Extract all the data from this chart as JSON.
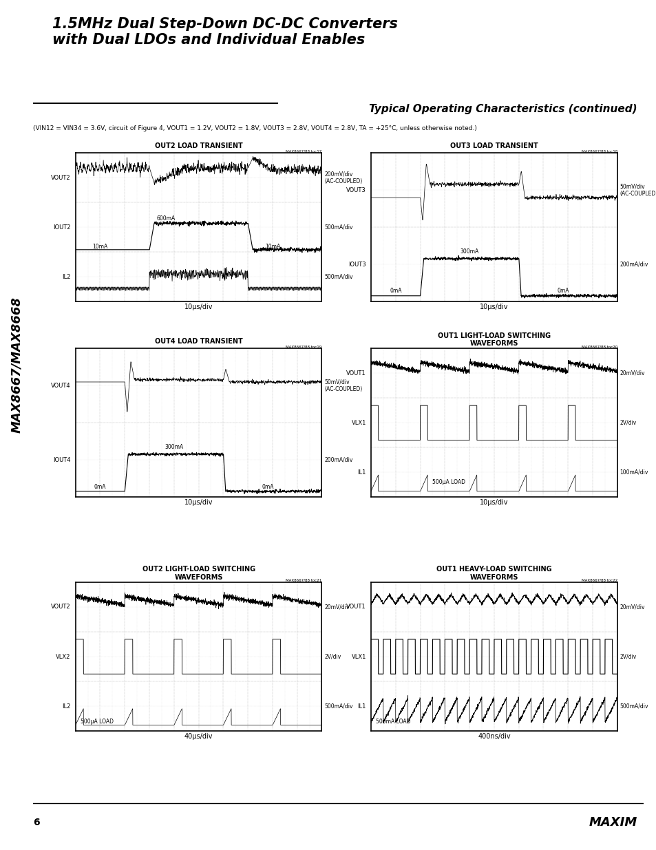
{
  "title_line1": "1.5MHz Dual Step-Down DC-DC Converters",
  "title_line2": "with Dual LDOs and Individual Enables",
  "section_title": "Typical Operating Characteristics (continued)",
  "subtitle_plain": "(VIN12 = VIN34 = 3.6V, circuit of Figure 4, VOUT1 = 1.2V, VOUT2 = 1.8V, VOUT3 = 2.8V, VOUT4 = 2.8V, TA = +25°C, unless otherwise noted.)",
  "bg_color": "#ffffff",
  "sidebar_text": "MAX8667/MAX8668",
  "page_number": "6"
}
